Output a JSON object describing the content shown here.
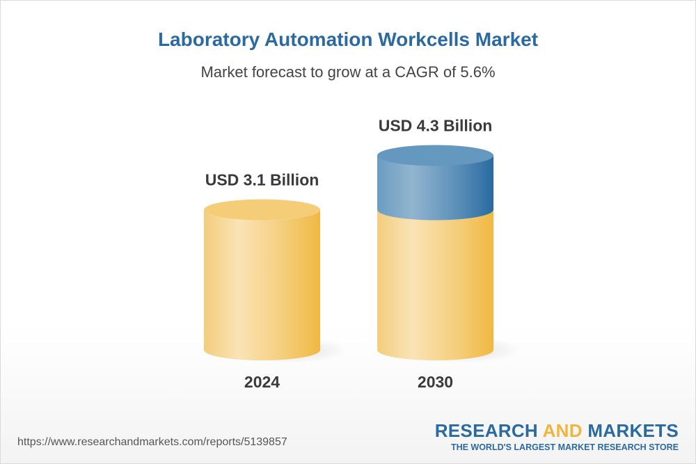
{
  "title": "Laboratory Automation Workcells Market",
  "subtitle": "Market forecast to grow at a CAGR of 5.6%",
  "chart_data": {
    "type": "bar",
    "style": "3d-cylinder",
    "categories": [
      "2024",
      "2030"
    ],
    "values": [
      3.1,
      4.3
    ],
    "data_labels": [
      "USD 3.1 Billion",
      "USD 4.3 Billion"
    ],
    "unit": "USD Billion",
    "colors": {
      "base": "#f2c260",
      "growth": "#3f7fb0"
    }
  },
  "footer": {
    "url": "https://www.researchandmarkets.com/reports/5139857",
    "logo_word1": "RESEARCH",
    "logo_word2": "AND",
    "logo_word3": "MARKETS",
    "logo_tagline": "THE WORLD'S LARGEST MARKET RESEARCH STORE"
  }
}
